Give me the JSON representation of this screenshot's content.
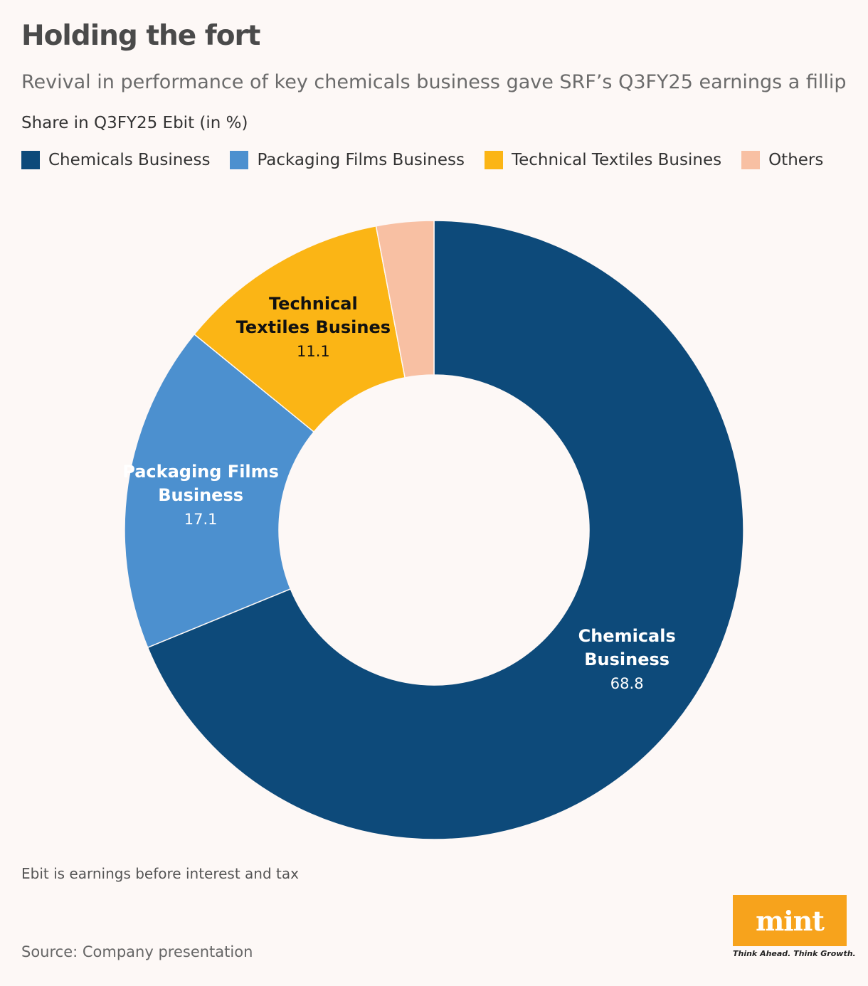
{
  "header": {
    "title": "Holding the fort",
    "subtitle": "Revival in performance of key chemicals business gave SRF’s Q3FY25 earnings a fillip",
    "unit_label": "Share in Q3FY25 Ebit (in %)"
  },
  "legend": [
    {
      "label": "Chemicals Business",
      "color": "#0d4a7a"
    },
    {
      "label": "Packaging Films Business",
      "color": "#4c90cf"
    },
    {
      "label": "Technical Textiles Busines",
      "color": "#fbb515"
    },
    {
      "label": "Others",
      "color": "#f8c0a3"
    }
  ],
  "chart_data": {
    "type": "pie",
    "variant": "donut",
    "categories": [
      "Chemicals Business",
      "Packaging Films Business",
      "Technical Textiles Busines",
      "Others"
    ],
    "values": [
      68.8,
      17.1,
      11.1,
      3.0
    ],
    "value_labels": [
      "68.8",
      "17.1",
      "11.1",
      ""
    ],
    "label_lines": [
      [
        "Chemicals",
        "Business"
      ],
      [
        "Packaging Films",
        "Business"
      ],
      [
        "Technical",
        "Textiles Busines"
      ],
      []
    ],
    "label_colors": [
      "#ffffff",
      "#ffffff",
      "#111111",
      "#111111"
    ],
    "colors": [
      "#0d4a7a",
      "#4c90cf",
      "#fbb515",
      "#f8c0a3"
    ],
    "start": "12 o'clock",
    "direction": "clockwise"
  },
  "footer": {
    "note": "Ebit is earnings before interest and tax",
    "source": "Source: Company presentation"
  },
  "brand": {
    "logo_text": "mint",
    "tagline": "Think Ahead. Think Growth."
  }
}
